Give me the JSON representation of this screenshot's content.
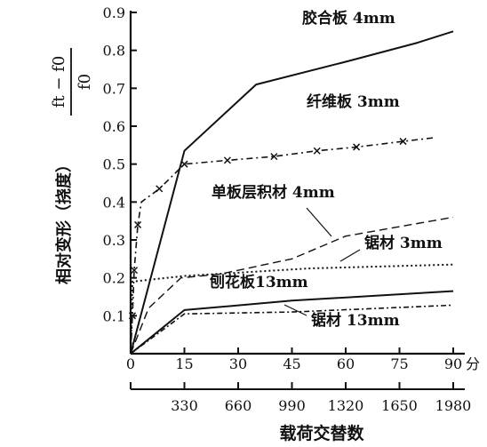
{
  "chart_data": {
    "type": "line",
    "ylabel": "相对变形（挠度）",
    "ylabel_formula": {
      "numerator": "ft − f0",
      "denominator": "f0"
    },
    "xlabel": "载荷交替数",
    "x_unit": "分",
    "xlim": [
      0,
      90
    ],
    "ylim": [
      0,
      0.9
    ],
    "x_ticks": [
      "0",
      "15",
      "30",
      "45",
      "60",
      "75",
      "90"
    ],
    "x2_ticks": [
      "330",
      "660",
      "990",
      "1320",
      "1650",
      "1980"
    ],
    "y_ticks": [
      "0.1",
      "0.2",
      "0.3",
      "0.4",
      "0.5",
      "0.6",
      "0.7",
      "0.8",
      "0.9"
    ],
    "grid": false,
    "series": [
      {
        "name": "胶合板 4mm",
        "style": "solid",
        "x": [
          0,
          15,
          35,
          60,
          80,
          90
        ],
        "y": [
          0.0,
          0.535,
          0.71,
          0.77,
          0.82,
          0.85
        ]
      },
      {
        "name": "纤维板 3mm",
        "style": "dash-dot-x",
        "x": [
          0,
          0.5,
          1,
          2,
          3,
          8,
          15,
          27,
          40,
          52,
          63,
          76,
          85
        ],
        "y": [
          0.0,
          0.1,
          0.22,
          0.34,
          0.4,
          0.435,
          0.5,
          0.51,
          0.52,
          0.535,
          0.545,
          0.56,
          0.57
        ],
        "marked_x": [
          0.5,
          1,
          2,
          8,
          15,
          27,
          40,
          52,
          63,
          76
        ]
      },
      {
        "name": "单板层积材 4mm",
        "style": "dashed",
        "x": [
          0,
          5,
          14,
          25,
          45,
          60,
          90
        ],
        "y": [
          0.0,
          0.12,
          0.2,
          0.21,
          0.25,
          0.31,
          0.36
        ]
      },
      {
        "name": "锯材 3mm",
        "style": "dotted",
        "x": [
          0,
          0.5,
          15,
          50,
          90
        ],
        "y": [
          0.0,
          0.19,
          0.205,
          0.225,
          0.235
        ]
      },
      {
        "name": "刨花板13mm",
        "style": "solid",
        "x": [
          0,
          15,
          45,
          90
        ],
        "y": [
          0.0,
          0.115,
          0.14,
          0.165
        ]
      },
      {
        "name": "锯材 13mm",
        "style": "dash-dot",
        "x": [
          0,
          15,
          45,
          90
        ],
        "y": [
          0.0,
          0.105,
          0.11,
          0.128
        ]
      }
    ],
    "labels": [
      "胶合板 4mm",
      "纤维板 3mm",
      "单板层积材 4mm",
      "锯材 3mm",
      "刨花板13mm",
      "锯材 13mm"
    ]
  }
}
